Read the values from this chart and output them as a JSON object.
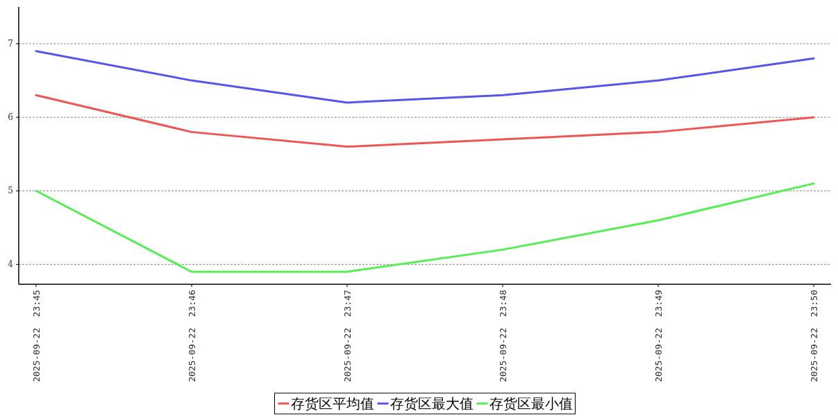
{
  "chart_data": {
    "type": "line",
    "categories": [
      "2025-09-22  23:45",
      "2025-09-22  23:46",
      "2025-09-22  23:47",
      "2025-09-22  23:48",
      "2025-09-22  23:49",
      "2025-09-22  23:50"
    ],
    "series": [
      {
        "name": "存货区平均值",
        "color": "#ee5555",
        "values": [
          6.3,
          5.8,
          5.6,
          5.7,
          5.8,
          6.0
        ]
      },
      {
        "name": "存货区最大值",
        "color": "#5555ee",
        "values": [
          6.9,
          6.5,
          6.2,
          6.3,
          6.5,
          6.8
        ]
      },
      {
        "name": "存货区最小值",
        "color": "#55ee55",
        "values": [
          5.0,
          3.9,
          3.9,
          4.2,
          4.6,
          5.1
        ]
      }
    ],
    "ylim": [
      3.73,
      7.5
    ],
    "yticks": [
      4,
      5,
      6,
      7
    ],
    "grid": "y",
    "legend": "bottom",
    "marker": "none",
    "line_style": "solid"
  }
}
